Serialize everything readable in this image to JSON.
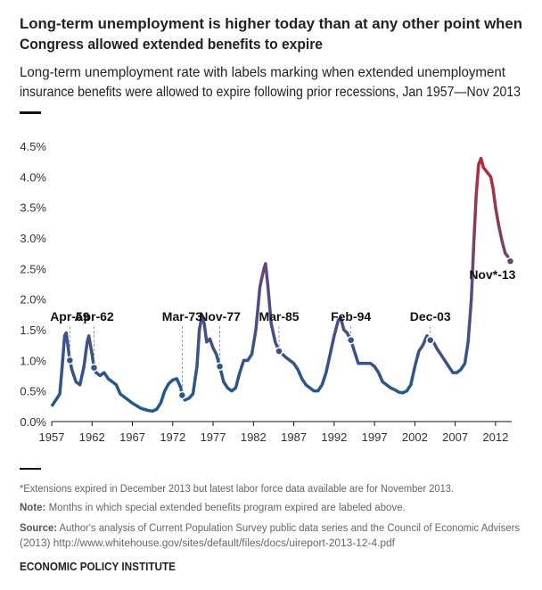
{
  "chart_data": {
    "type": "line",
    "title": [
      "Long-term unemployment is higher today than at any other point when",
      "Congress allowed extended benefits to expire"
    ],
    "subtitle": [
      "Long-term unemployment rate with labels marking when extended unemployment",
      "insurance benefits were allowed to expire following prior recessions, Jan 1957—Nov 2013"
    ],
    "x": [
      1957.0,
      1957.5,
      1958.0,
      1958.3,
      1958.6,
      1958.8,
      1959.0,
      1959.25,
      1959.5,
      1960.0,
      1960.5,
      1961.0,
      1961.4,
      1961.6,
      1962.0,
      1962.25,
      1962.5,
      1963.0,
      1963.5,
      1964.0,
      1964.5,
      1965.0,
      1965.5,
      1966.0,
      1967.0,
      1968.0,
      1969.0,
      1969.5,
      1970.0,
      1970.5,
      1971.0,
      1971.5,
      1972.0,
      1972.5,
      1973.0,
      1973.17,
      1973.5,
      1974.0,
      1974.5,
      1975.0,
      1975.3,
      1975.6,
      1975.9,
      1976.2,
      1976.6,
      1977.0,
      1977.4,
      1977.83,
      1978.3,
      1978.8,
      1979.3,
      1979.8,
      1980.3,
      1980.8,
      1981.3,
      1981.8,
      1982.3,
      1982.8,
      1983.3,
      1983.5,
      1983.8,
      1984.2,
      1984.7,
      1985.17,
      1985.6,
      1986.0,
      1986.5,
      1987.0,
      1987.5,
      1988.0,
      1988.5,
      1989.0,
      1989.5,
      1990.0,
      1990.5,
      1991.0,
      1991.5,
      1992.0,
      1992.5,
      1992.8,
      1993.2,
      1993.6,
      1994.08,
      1994.5,
      1995.0,
      1995.5,
      1996.0,
      1996.5,
      1997.0,
      1997.5,
      1998.0,
      1998.5,
      1999.0,
      1999.5,
      2000.0,
      2000.5,
      2001.0,
      2001.5,
      2002.0,
      2002.5,
      2003.0,
      2003.5,
      2003.92,
      2004.3,
      2004.7,
      2005.2,
      2005.7,
      2006.2,
      2006.7,
      2007.2,
      2007.7,
      2008.2,
      2008.6,
      2009.0,
      2009.3,
      2009.6,
      2009.9,
      2010.2,
      2010.5,
      2010.8,
      2011.1,
      2011.4,
      2011.7,
      2012.0,
      2012.4,
      2012.8,
      2013.2,
      2013.5,
      2013.83
    ],
    "values": [
      0.25,
      0.35,
      0.45,
      0.9,
      1.4,
      1.45,
      1.25,
      1.0,
      0.85,
      0.65,
      0.6,
      0.9,
      1.3,
      1.4,
      1.1,
      0.88,
      0.8,
      0.75,
      0.8,
      0.7,
      0.65,
      0.6,
      0.45,
      0.4,
      0.3,
      0.22,
      0.18,
      0.17,
      0.2,
      0.3,
      0.5,
      0.62,
      0.68,
      0.7,
      0.55,
      0.43,
      0.35,
      0.38,
      0.45,
      0.9,
      1.5,
      1.72,
      1.6,
      1.3,
      1.35,
      1.2,
      1.1,
      0.9,
      0.65,
      0.55,
      0.5,
      0.55,
      0.8,
      1.0,
      1.0,
      1.1,
      1.5,
      2.2,
      2.5,
      2.58,
      2.2,
      1.6,
      1.3,
      1.15,
      1.1,
      1.05,
      1.0,
      0.95,
      0.85,
      0.7,
      0.6,
      0.55,
      0.5,
      0.5,
      0.6,
      0.8,
      1.1,
      1.4,
      1.65,
      1.7,
      1.5,
      1.45,
      1.33,
      1.15,
      0.95,
      0.95,
      0.95,
      0.95,
      0.9,
      0.8,
      0.65,
      0.6,
      0.55,
      0.52,
      0.48,
      0.47,
      0.5,
      0.6,
      0.9,
      1.15,
      1.25,
      1.4,
      1.33,
      1.3,
      1.2,
      1.1,
      1.0,
      0.9,
      0.8,
      0.8,
      0.85,
      0.95,
      1.3,
      2.0,
      2.9,
      3.7,
      4.2,
      4.3,
      4.15,
      4.1,
      4.05,
      4.0,
      3.8,
      3.5,
      3.2,
      2.95,
      2.75,
      2.7,
      2.62
    ],
    "gradient_colors": [
      "#1b5b8c",
      "#5b4a82",
      "#c1272d"
    ],
    "annotations": [
      {
        "label": "Apr-59",
        "x": 1959.25,
        "y": 1.0
      },
      {
        "label": "Apr-62",
        "x": 1962.25,
        "y": 0.88
      },
      {
        "label": "Mar-73",
        "x": 1973.17,
        "y": 0.43
      },
      {
        "label": "Nov-77",
        "x": 1977.83,
        "y": 0.9
      },
      {
        "label": "Mar-85",
        "x": 1985.17,
        "y": 1.15
      },
      {
        "label": "Feb-94",
        "x": 1994.08,
        "y": 1.33
      },
      {
        "label": "Dec-03",
        "x": 2003.92,
        "y": 1.33
      },
      {
        "label": "Nov*-13",
        "x": 2013.83,
        "y": 2.62
      }
    ],
    "xlim": [
      1957,
      2014
    ],
    "ylim": [
      0,
      4.5
    ],
    "xticks": [
      1957,
      1962,
      1967,
      1972,
      1977,
      1982,
      1987,
      1992,
      1997,
      2002,
      2007,
      2012
    ],
    "yticks": [
      {
        "value": 0,
        "label": "0.0%"
      },
      {
        "value": 0.5,
        "label": "0.5%"
      },
      {
        "value": 1,
        "label": "1.0%"
      },
      {
        "value": 1.5,
        "label": "1.5%"
      },
      {
        "value": 2,
        "label": "2.0%"
      },
      {
        "value": 2.5,
        "label": "2.5%"
      },
      {
        "value": 3,
        "label": "3.0%"
      },
      {
        "value": 3.5,
        "label": "3.5%"
      },
      {
        "value": 4,
        "label": "4.0%"
      },
      {
        "value": 4.5,
        "label": "4.5%"
      }
    ],
    "footnote": "*Extensions expired in December 2013 but latest labor force data available are for November 2013.",
    "note": {
      "label": "Note:",
      "text": "Months in which special extended benefits program expired are labeled above."
    },
    "source": {
      "label": "Source:",
      "lines": [
        "Author's analysis of Current Population Survey public data series and the Council of Economic Advisers",
        "(2013)  http://www.whitehouse.gov/sites/default/files/docs/uireport-2013-12-4.pdf"
      ]
    },
    "credit": "ECONOMIC POLICY INSTITUTE"
  }
}
